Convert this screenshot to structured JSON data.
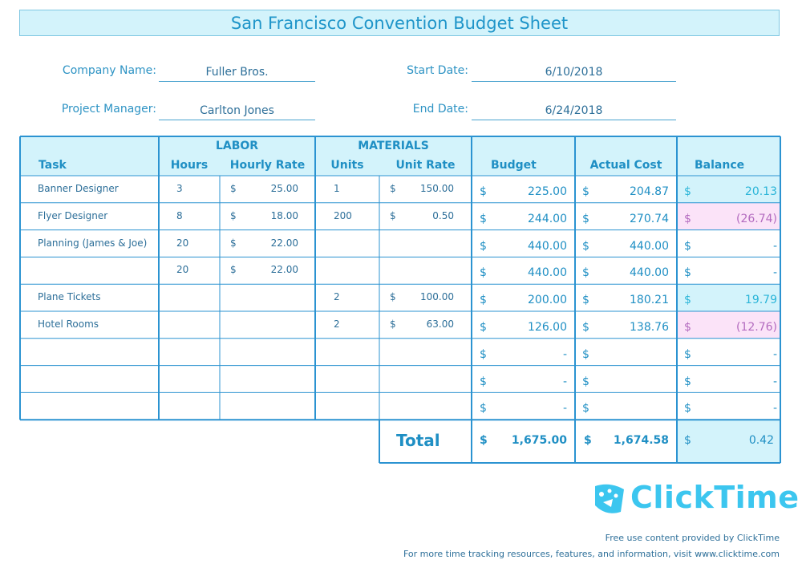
{
  "title": "San Francisco Convention Budget Sheet",
  "fields": {
    "company_label": "Company Name:",
    "company_value": "Fuller Bros.",
    "pm_label": "Project Manager:",
    "pm_value": "Carlton Jones",
    "start_label": "Start Date:",
    "start_value": "6/10/2018",
    "end_label": "End Date:",
    "end_value": "6/24/2018"
  },
  "table": {
    "group_labor": "LABOR",
    "group_materials": "MATERIALS",
    "headers": {
      "task": "Task",
      "hours": "Hours",
      "hourly_rate": "Hourly Rate",
      "units": "Units",
      "unit_rate": "Unit Rate",
      "budget": "Budget",
      "actual": "Actual Cost",
      "balance": "Balance"
    },
    "currency": "$",
    "rows": [
      {
        "task": "Banner Designer",
        "hours": "3",
        "hourly_rate": "25.00",
        "units": "1",
        "unit_rate": "150.00",
        "budget": "225.00",
        "actual": "204.87",
        "balance": "20.13",
        "balance_state": "positive"
      },
      {
        "task": "Flyer Designer",
        "hours": "8",
        "hourly_rate": "18.00",
        "units": "200",
        "unit_rate": "0.50",
        "budget": "244.00",
        "actual": "270.74",
        "balance": "(26.74)",
        "balance_state": "negative"
      },
      {
        "task": "Planning (James & Joe)",
        "hours": "20",
        "hourly_rate": "22.00",
        "units": "",
        "unit_rate": "",
        "budget": "440.00",
        "actual": "440.00",
        "balance": "-",
        "balance_state": "zero"
      },
      {
        "task": "",
        "hours": "20",
        "hourly_rate": "22.00",
        "units": "",
        "unit_rate": "",
        "budget": "440.00",
        "actual": "440.00",
        "balance": "-",
        "balance_state": "zero"
      },
      {
        "task": "Plane Tickets",
        "hours": "",
        "hourly_rate": "",
        "units": "2",
        "unit_rate": "100.00",
        "budget": "200.00",
        "actual": "180.21",
        "balance": "19.79",
        "balance_state": "positive"
      },
      {
        "task": "Hotel Rooms",
        "hours": "",
        "hourly_rate": "",
        "units": "2",
        "unit_rate": "63.00",
        "budget": "126.00",
        "actual": "138.76",
        "balance": "(12.76)",
        "balance_state": "negative"
      },
      {
        "task": "",
        "hours": "",
        "hourly_rate": "",
        "units": "",
        "unit_rate": "",
        "budget": "-",
        "actual": "",
        "balance": "-",
        "balance_state": "zero"
      },
      {
        "task": "",
        "hours": "",
        "hourly_rate": "",
        "units": "",
        "unit_rate": "",
        "budget": "-",
        "actual": "",
        "balance": "-",
        "balance_state": "zero"
      },
      {
        "task": "",
        "hours": "",
        "hourly_rate": "",
        "units": "",
        "unit_rate": "",
        "budget": "-",
        "actual": "",
        "balance": "-",
        "balance_state": "zero"
      }
    ],
    "total": {
      "label": "Total",
      "budget": "1,675.00",
      "actual": "1,674.58",
      "balance": "0.42"
    }
  },
  "brand": {
    "name": "ClickTime",
    "icon": "clicktime-logo-icon"
  },
  "footer": {
    "line1": "Free use content provided by ClickTime",
    "line2": "For more time tracking resources, features, and information, visit www.clicktime.com"
  },
  "colors": {
    "accent": "#1f95c9",
    "header_fill": "#d3f3fb",
    "positive_fill": "#d3f3fb",
    "negative_fill": "#fbe3f8",
    "negative_text": "#b36bbf",
    "brand": "#3cc6ef"
  }
}
